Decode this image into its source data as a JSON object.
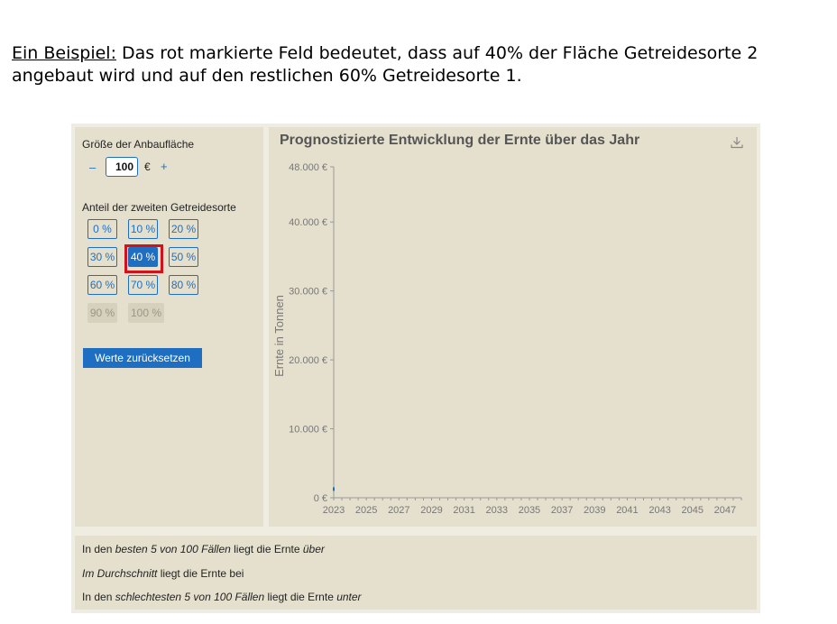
{
  "intro": {
    "lead": "Ein Beispiel:",
    "text_1": " Das rot markierte Feld bedeutet, dass auf 40% der Fläche Getreidesorte 2",
    "text_2": "angebaut wird und auf den restlichen 60% Getreidesorte 1."
  },
  "controls": {
    "area_label": "Größe der Anbaufläche",
    "minus": "–",
    "plus": "+",
    "area_value": "100",
    "unit": "€",
    "share_label": "Anteil der zweiten Getreidesorte",
    "percent_buttons": [
      "0 %",
      "10 %",
      "20 %",
      "30 %",
      "40 %",
      "50 %",
      "60 %",
      "70 %",
      "80 %",
      "90 %",
      "100 %"
    ],
    "selected": "40 %",
    "disabled": [
      "90 %",
      "100 %"
    ],
    "reset_label": "Werte zurücksetzen"
  },
  "colors": {
    "accent": "#1e6fc2",
    "highlight": "#d0121b",
    "panel": "#e5e0cd"
  },
  "chart_data": {
    "type": "line",
    "title": "Prognostizierte Entwicklung der Ernte über das Jahr",
    "ylabel": "Ernte in Tonnen",
    "xlabel": "",
    "ylim": [
      0,
      48000
    ],
    "xlim": [
      2023,
      2048
    ],
    "yticks": [
      0,
      10000,
      20000,
      30000,
      40000,
      48000
    ],
    "ytick_labels": [
      "0 €",
      "10.000 €",
      "20.000 €",
      "30.000 €",
      "40.000 €",
      "48.000 €"
    ],
    "xticks": [
      2023,
      2025,
      2027,
      2029,
      2031,
      2033,
      2035,
      2037,
      2039,
      2041,
      2043,
      2045,
      2047
    ],
    "xtick_labels": [
      "2023",
      "2025",
      "2027",
      "2029",
      "2031",
      "2033",
      "2035",
      "2037",
      "2039",
      "2041",
      "2043",
      "2045",
      "2047"
    ],
    "grid": false,
    "series": [
      {
        "x": [
          2023
        ],
        "y": [
          1000
        ]
      }
    ]
  },
  "summary": {
    "line1": {
      "a": "In den ",
      "b": "besten 5 von 100 Fällen",
      "c": " liegt die Ernte ",
      "d": "über"
    },
    "line2": {
      "a": "Im Durchschnitt",
      "b": " liegt die Ernte bei"
    },
    "line3": {
      "a": "In den ",
      "b": "schlechtesten 5 von 100 Fällen",
      "c": " liegt die Ernte ",
      "d": "unter"
    }
  }
}
